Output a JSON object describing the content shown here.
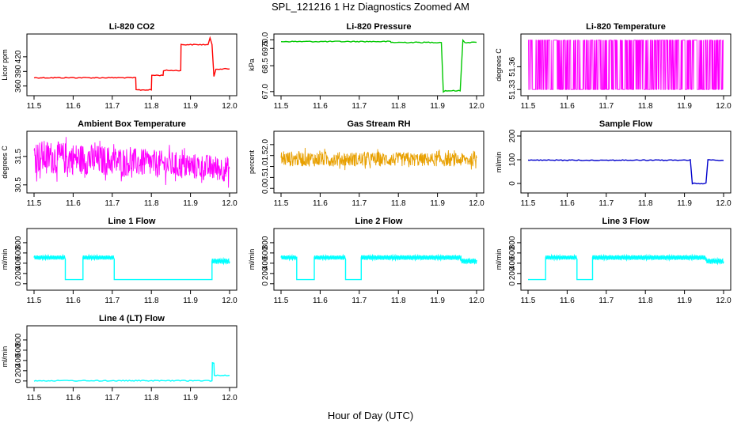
{
  "page": {
    "title": "SPL_121216  1 Hz Diagnostics Zoomed AM",
    "xlabel": "Hour of Day (UTC)"
  },
  "chart_data": [
    {
      "type": "line",
      "title": "Li-820 CO2",
      "ylabel": "Licor ppm",
      "color": "#ff0000",
      "xlim": [
        11.5,
        12.0
      ],
      "xticks": [
        "11.5",
        "11.6",
        "11.7",
        "11.8",
        "11.9",
        "12.0"
      ],
      "ylim": [
        345,
        462
      ],
      "yticks": [
        "360",
        "390",
        "420"
      ],
      "style": "step",
      "series": [
        {
          "x": [
            11.5,
            11.76,
            11.761,
            11.8,
            11.801,
            11.83,
            11.831,
            11.875,
            11.876,
            11.945,
            11.95,
            11.955,
            11.96,
            11.965,
            12.0
          ],
          "y": [
            377,
            377,
            352,
            352,
            382,
            382,
            392,
            392,
            445,
            445,
            458,
            445,
            380,
            395,
            395
          ]
        }
      ]
    },
    {
      "type": "line",
      "title": "Li-820 Pressure",
      "ylabel": "kPa",
      "color": "#00c800",
      "xlim": [
        11.5,
        12.0
      ],
      "xticks": [
        "11.5",
        "11.6",
        "11.7",
        "11.8",
        "11.9",
        "12.0"
      ],
      "ylim": [
        66.9,
        70.2
      ],
      "yticks": [
        "67.0",
        "68.5",
        "69.5",
        "70.0"
      ],
      "style": "step",
      "series": [
        {
          "x": [
            11.5,
            11.78,
            11.781,
            11.91,
            11.915,
            11.92,
            11.958,
            11.965,
            11.97,
            12.0
          ],
          "y": [
            69.9,
            69.9,
            69.85,
            69.85,
            67.0,
            67.05,
            67.05,
            70.0,
            69.85,
            69.85
          ]
        }
      ]
    },
    {
      "type": "line",
      "title": "Li-820 Temperature",
      "ylabel": "degrees C",
      "color": "#ff00ff",
      "xlim": [
        11.5,
        12.0
      ],
      "xticks": [
        "11.5",
        "11.6",
        "11.7",
        "11.8",
        "11.9",
        "12.0"
      ],
      "ylim": [
        51.325,
        51.4
      ],
      "yticks": [
        "51.33",
        "51.36"
      ],
      "style": "noise",
      "series": [
        {
          "x": [
            11.5,
            12.0
          ],
          "y": [
            51.33,
            51.395
          ]
        }
      ]
    },
    {
      "type": "line",
      "title": "Ambient Box Temperature",
      "ylabel": "degrees C",
      "color": "#ff00ff",
      "xlim": [
        11.5,
        12.0
      ],
      "xticks": [
        "11.5",
        "11.6",
        "11.7",
        "11.8",
        "11.9",
        "12.0"
      ],
      "ylim": [
        30.3,
        32.3
      ],
      "yticks": [
        "30.5",
        "31.5"
      ],
      "style": "noise",
      "series": [
        {
          "x": [
            11.5,
            11.75,
            12.0
          ],
          "y": [
            30.9,
            30.8,
            30.6
          ],
          "y_high": [
            32.1,
            31.8,
            31.5
          ]
        }
      ]
    },
    {
      "type": "line",
      "title": "Gas Stream RH",
      "ylabel": "percent",
      "color": "#e8a000",
      "xlim": [
        11.5,
        12.0
      ],
      "xticks": [
        "11.5",
        "11.6",
        "11.7",
        "11.8",
        "11.9",
        "12.0"
      ],
      "ylim": [
        -0.1,
        2.5
      ],
      "yticks": [
        "0.0",
        "0.5",
        "1.0",
        "1.5",
        "2.0"
      ],
      "style": "noise",
      "series": [
        {
          "x": [
            11.5,
            12.0
          ],
          "y": [
            1.0,
            1.0
          ],
          "y_high": [
            1.7,
            1.6
          ]
        }
      ]
    },
    {
      "type": "line",
      "title": "Sample Flow",
      "ylabel": "ml/min",
      "color": "#0000cc",
      "xlim": [
        11.5,
        12.0
      ],
      "xticks": [
        "11.5",
        "11.6",
        "11.7",
        "11.8",
        "11.9",
        "12.0"
      ],
      "ylim": [
        -30,
        210
      ],
      "yticks": [
        "0",
        "100",
        "200"
      ],
      "style": "step",
      "series": [
        {
          "x": [
            11.5,
            11.915,
            11.92,
            11.955,
            11.96,
            12.0
          ],
          "y": [
            98,
            98,
            0,
            0,
            100,
            97
          ]
        }
      ]
    },
    {
      "type": "line",
      "title": "Line 1 Flow",
      "ylabel": "ml/min",
      "color": "#00ffff",
      "xlim": [
        11.5,
        12.0
      ],
      "xticks": [
        "11.5",
        "11.6",
        "11.7",
        "11.8",
        "11.9",
        "12.0"
      ],
      "ylim": [
        -80,
        1030
      ],
      "yticks": [
        "0",
        "200",
        "400",
        "600",
        "800"
      ],
      "style": "osc",
      "series": [
        {
          "segments": [
            [
              11.5,
              11.58,
              510,
              40
            ],
            [
              11.58,
              11.625,
              80,
              0
            ],
            [
              11.625,
              11.705,
              510,
              40
            ],
            [
              11.705,
              11.955,
              80,
              0
            ],
            [
              11.955,
              12.0,
              440,
              50
            ]
          ]
        }
      ]
    },
    {
      "type": "line",
      "title": "Line 2 Flow",
      "ylabel": "ml/min",
      "color": "#00ffff",
      "xlim": [
        11.5,
        12.0
      ],
      "xticks": [
        "11.5",
        "11.6",
        "11.7",
        "11.8",
        "11.9",
        "12.0"
      ],
      "ylim": [
        -80,
        1030
      ],
      "yticks": [
        "0",
        "200",
        "400",
        "600",
        "800"
      ],
      "style": "osc",
      "series": [
        {
          "segments": [
            [
              11.5,
              11.54,
              510,
              40
            ],
            [
              11.54,
              11.585,
              80,
              0
            ],
            [
              11.585,
              11.665,
              510,
              40
            ],
            [
              11.665,
              11.705,
              80,
              0
            ],
            [
              11.705,
              11.96,
              510,
              45
            ],
            [
              11.96,
              12.0,
              440,
              50
            ]
          ]
        }
      ]
    },
    {
      "type": "line",
      "title": "Line 3 Flow",
      "ylabel": "ml/min",
      "color": "#00ffff",
      "xlim": [
        11.5,
        12.0
      ],
      "xticks": [
        "11.5",
        "11.6",
        "11.7",
        "11.8",
        "11.9",
        "12.0"
      ],
      "ylim": [
        -80,
        1030
      ],
      "yticks": [
        "0",
        "200",
        "400",
        "600",
        "800"
      ],
      "style": "osc",
      "series": [
        {
          "segments": [
            [
              11.5,
              11.545,
              80,
              0
            ],
            [
              11.545,
              11.625,
              510,
              40
            ],
            [
              11.625,
              11.665,
              80,
              0
            ],
            [
              11.665,
              11.955,
              510,
              45
            ],
            [
              11.955,
              12.0,
              440,
              50
            ]
          ]
        }
      ]
    },
    {
      "type": "line",
      "title": "Line 4 (LT) Flow",
      "ylabel": "ml/min",
      "color": "#00ffff",
      "xlim": [
        11.5,
        12.0
      ],
      "xticks": [
        "11.5",
        "11.6",
        "11.7",
        "11.8",
        "11.9",
        "12.0"
      ],
      "ylim": [
        -80,
        1030
      ],
      "yticks": [
        "0",
        "200",
        "400",
        "600",
        "800"
      ],
      "style": "step",
      "series": [
        {
          "x": [
            11.5,
            11.955,
            11.956,
            11.96,
            11.961,
            12.0
          ],
          "y": [
            5,
            5,
            350,
            350,
            110,
            110
          ]
        }
      ]
    }
  ]
}
